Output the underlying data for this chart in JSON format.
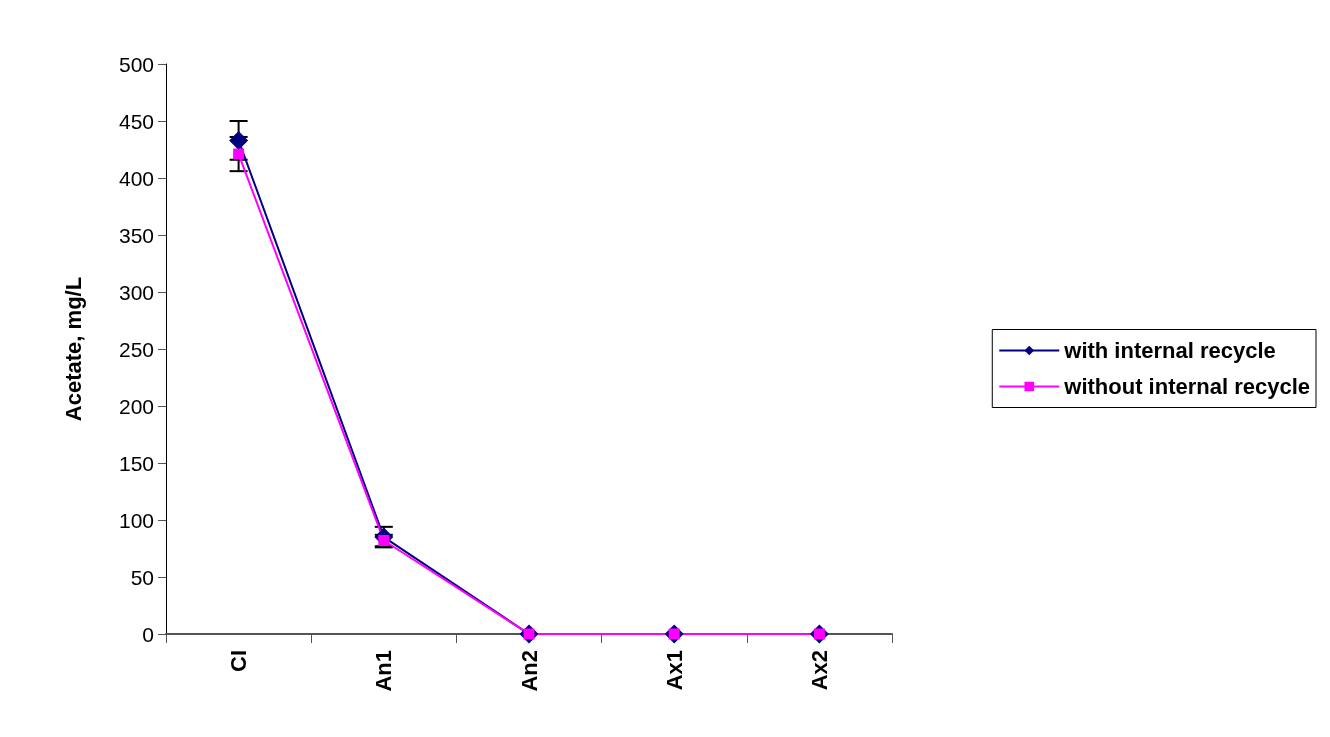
{
  "chart_data": {
    "type": "line",
    "ylabel": "Acetate, mg/L",
    "categories": [
      "CI",
      "An1",
      "An2",
      "Ax1",
      "Ax2"
    ],
    "series": [
      {
        "name": "with internal recycle",
        "color": "#000080",
        "marker": "diamond",
        "values": [
          433,
          85,
          0,
          0,
          0
        ],
        "errors": [
          17,
          9,
          null,
          null,
          null
        ]
      },
      {
        "name": "without internal recycle",
        "color": "#ff00ff",
        "marker": "square",
        "values": [
          421,
          82,
          0,
          0,
          0
        ],
        "errors": [
          15,
          5,
          null,
          null,
          null
        ]
      }
    ],
    "ylim": [
      0,
      500
    ],
    "yticks": [
      0,
      50,
      100,
      150,
      200,
      250,
      300,
      350,
      400,
      450,
      500
    ],
    "grid": false,
    "legend": "right"
  }
}
